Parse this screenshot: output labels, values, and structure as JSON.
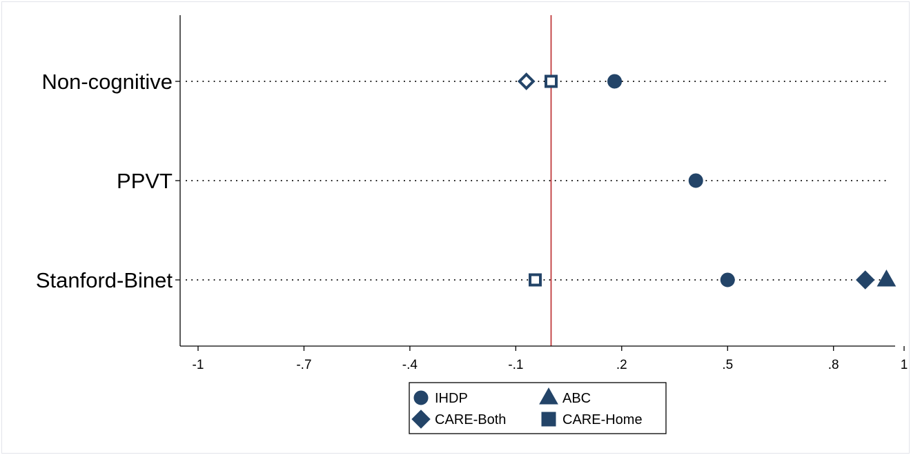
{
  "chart_data": {
    "type": "scatter",
    "categories": [
      "Non-cognitive",
      "PPVT",
      "Stanford-Binet"
    ],
    "xlim": [
      -1.05,
      1.0
    ],
    "xticks": [
      -1,
      -0.7,
      -0.4,
      -0.1,
      0.2,
      0.5,
      0.8,
      1
    ],
    "xtick_labels": [
      "-1",
      "-.7",
      "-.4",
      "-.1",
      ".2",
      ".5",
      ".8",
      "1"
    ],
    "reference_line": {
      "x": 0,
      "color": "#c0393b"
    },
    "grid": "dotted horizontal per category",
    "legend_position": "bottom-center",
    "series_color": "#234468",
    "series": [
      {
        "name": "IHDP",
        "marker": "circle",
        "filled": true,
        "points": [
          {
            "category": "Non-cognitive",
            "x": 0.18
          },
          {
            "category": "PPVT",
            "x": 0.41
          },
          {
            "category": "Stanford-Binet",
            "x": 0.5
          }
        ]
      },
      {
        "name": "ABC",
        "marker": "triangle",
        "filled": true,
        "points": [
          {
            "category": "Stanford-Binet",
            "x": 0.95
          }
        ]
      },
      {
        "name": "CARE-Both",
        "marker": "diamond",
        "points": [
          {
            "category": "Non-cognitive",
            "x": -0.07,
            "filled": false
          },
          {
            "category": "Stanford-Binet",
            "x": 0.89,
            "filled": true
          }
        ]
      },
      {
        "name": "CARE-Home",
        "marker": "square",
        "points": [
          {
            "category": "Non-cognitive",
            "x": 0.0,
            "filled": false
          },
          {
            "category": "Stanford-Binet",
            "x": -0.045,
            "filled": false
          }
        ]
      }
    ]
  }
}
